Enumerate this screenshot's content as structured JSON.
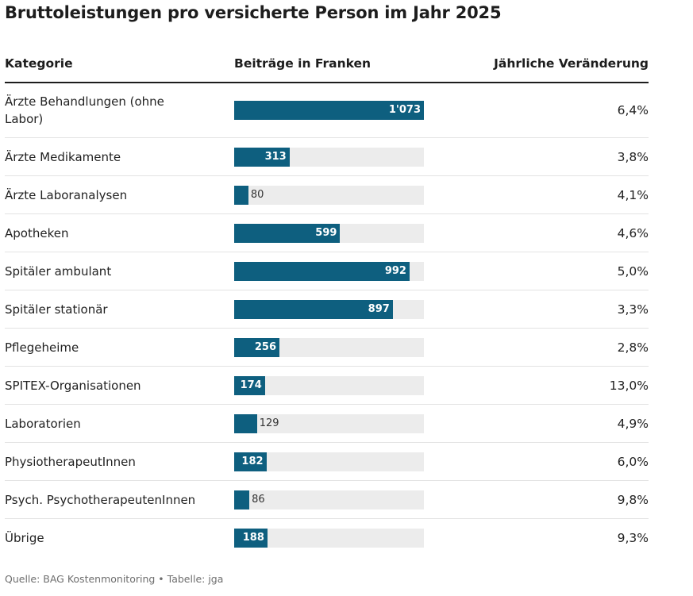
{
  "title": "Bruttoleistungen pro versicherte Person im Jahr 2025",
  "header": {
    "category": "Kategorie",
    "contributions": "Beiträge in Franken",
    "change": "Jährliche Veränderung"
  },
  "colors": {
    "bar": "#0e5f7f",
    "track": "#ececec"
  },
  "chart_data": {
    "type": "table",
    "title": "Bruttoleistungen pro versicherte Person im Jahr 2025",
    "columns": [
      "Kategorie",
      "Beiträge in Franken",
      "Jährliche Veränderung"
    ],
    "max_value": 1073,
    "rows": [
      {
        "category": "Ärzte Behandlungen (ohne Labor)",
        "value": 1073,
        "label": "1'073",
        "change": "6,4%"
      },
      {
        "category": "Ärzte Medikamente",
        "value": 313,
        "label": "313",
        "change": "3,8%"
      },
      {
        "category": "Ärzte Laboranalysen",
        "value": 80,
        "label": "80",
        "change": "4,1%"
      },
      {
        "category": "Apotheken",
        "value": 599,
        "label": "599",
        "change": "4,6%"
      },
      {
        "category": "Spitäler ambulant",
        "value": 992,
        "label": "992",
        "change": "5,0%"
      },
      {
        "category": "Spitäler stationär",
        "value": 897,
        "label": "897",
        "change": "3,3%"
      },
      {
        "category": "Pflegeheime",
        "value": 256,
        "label": "256",
        "change": "2,8%"
      },
      {
        "category": "SPITEX-Organisationen",
        "value": 174,
        "label": "174",
        "change": "13,0%"
      },
      {
        "category": "Laboratorien",
        "value": 129,
        "label": "129",
        "change": "4,9%"
      },
      {
        "category": "PhysiotherapeutInnen",
        "value": 182,
        "label": "182",
        "change": "6,0%"
      },
      {
        "category": "Psych. PsychotherapeutenInnen",
        "value": 86,
        "label": "86",
        "change": "9,8%"
      },
      {
        "category": "Übrige",
        "value": 188,
        "label": "188",
        "change": "9,3%"
      }
    ]
  },
  "footer": {
    "source": "Quelle: BAG Kostenmonitoring • Tabelle: jga"
  }
}
